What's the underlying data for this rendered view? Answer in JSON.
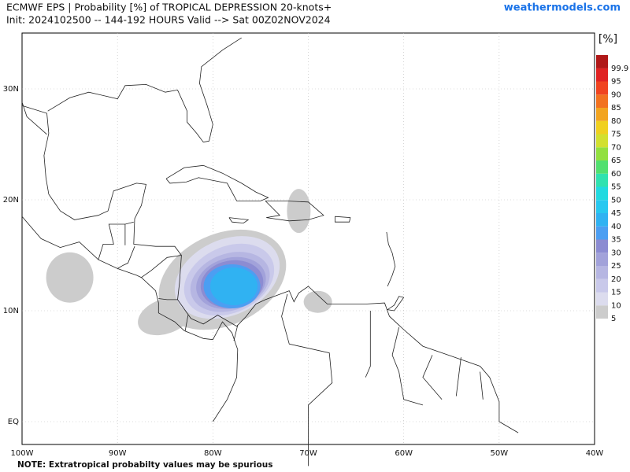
{
  "header": {
    "title": "ECMWF EPS | Probability [%] of TROPICAL DEPRESSION 20-knots+",
    "subtitle": "Init: 2024102500 -- 144-192 HOURS Valid --> Sat 00Z02NOV2024",
    "source": "weathermodels.com"
  },
  "map": {
    "lat_labels": [
      "30N",
      "20N",
      "10N",
      "EQ"
    ],
    "lon_labels": [
      "100W",
      "90W",
      "80W",
      "70W",
      "60W",
      "50W",
      "40W"
    ]
  },
  "colorbar": {
    "unit": "[%]",
    "levels": [
      {
        "label": "5",
        "color": "#cccccc"
      },
      {
        "label": "10",
        "color": "#dcdcee"
      },
      {
        "label": "15",
        "color": "#c9c9ea"
      },
      {
        "label": "20",
        "color": "#b6b6e2"
      },
      {
        "label": "25",
        "color": "#a2a2da"
      },
      {
        "label": "30",
        "color": "#8c8cd2"
      },
      {
        "label": "35",
        "color": "#4c9ef2"
      },
      {
        "label": "40",
        "color": "#30b2f2"
      },
      {
        "label": "45",
        "color": "#28c8f0"
      },
      {
        "label": "50",
        "color": "#22dae0"
      },
      {
        "label": "55",
        "color": "#30e2b0"
      },
      {
        "label": "60",
        "color": "#52e070"
      },
      {
        "label": "65",
        "color": "#92e040"
      },
      {
        "label": "70",
        "color": "#d2e030"
      },
      {
        "label": "75",
        "color": "#f0d020"
      },
      {
        "label": "80",
        "color": "#f2a420"
      },
      {
        "label": "85",
        "color": "#f27220"
      },
      {
        "label": "90",
        "color": "#f04420"
      },
      {
        "label": "95",
        "color": "#e02222"
      },
      {
        "label": "99.9",
        "color": "#b01818"
      }
    ]
  },
  "footer": {
    "note": "NOTE: Extratropical probabilty values may be spurious"
  }
}
